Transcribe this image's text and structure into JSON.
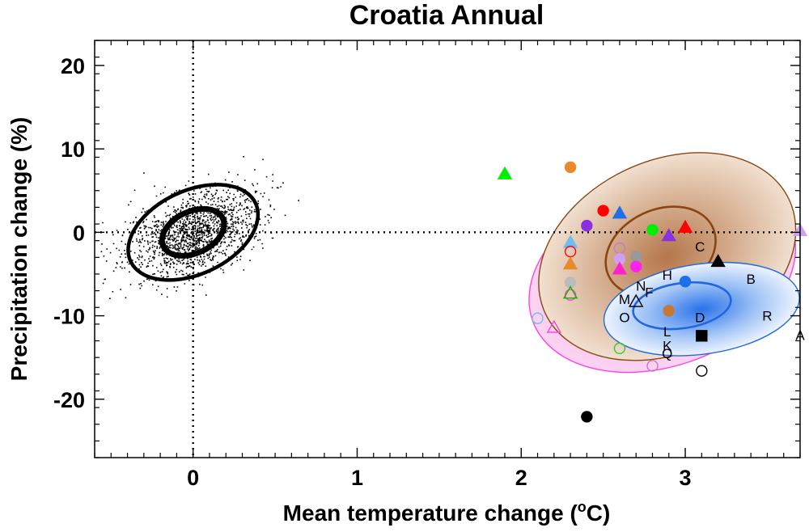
{
  "chart_data": {
    "type": "scatter",
    "title": "Croatia Annual",
    "xlabel_main": "Mean temperature change (",
    "xlabel_sup": "o",
    "xlabel_end": "C)",
    "ylabel": "Precipitation change (%)",
    "xlim": [
      -0.6,
      3.7
    ],
    "ylim": [
      -27,
      23
    ],
    "x_ticks": [
      0,
      1,
      2,
      3
    ],
    "x_tick_labels": [
      "0",
      "1",
      "2",
      "3"
    ],
    "y_ticks": [
      20,
      10,
      0,
      -10,
      -20
    ],
    "y_tick_labels": [
      "20",
      "10",
      "0",
      "-10",
      "-20"
    ],
    "reference_lines": {
      "x": 0,
      "y": 0
    },
    "natural_variability": {
      "center": [
        0.0,
        0.0
      ],
      "ellipses": [
        {
          "rx": 0.2,
          "ry": 2.5,
          "angle_deg": -25,
          "stroke_width": 7
        },
        {
          "rx": 0.42,
          "ry": 5.0,
          "angle_deg": -25,
          "stroke_width": 4.5
        }
      ],
      "scatter_count": 1600
    },
    "ensemble_regions": [
      {
        "name": "magenta",
        "color": "#ff44dd",
        "fill": "#fbd3f2",
        "cx": 2.86,
        "cy": -5.0,
        "rx": 0.84,
        "ry": 11.0,
        "angle_deg": -20
      },
      {
        "name": "brown",
        "color": "#8b4513",
        "fill_outer": "#f1e0d0",
        "fill_inner": "#b5764a",
        "cx": 2.89,
        "cy": -2.9,
        "rx": 0.82,
        "ry": 11.5,
        "angle_deg": -25,
        "inner_contour": {
          "cx": 2.85,
          "cy": -2.3,
          "rx": 0.35,
          "ry": 5.0
        }
      },
      {
        "name": "blue",
        "color": "#2266dd",
        "fill_outer": "#eef4ff",
        "fill_inner": "#2a72ea",
        "cx": 3.1,
        "cy": -9.2,
        "rx": 0.6,
        "ry": 5.4,
        "angle_deg": -8,
        "inner_contour": {
          "cx": 2.98,
          "cy": -8.8,
          "rx": 0.3,
          "ry": 2.7
        }
      }
    ],
    "models": [
      {
        "x": 1.9,
        "y": 7.0,
        "marker": "triangle",
        "filled": true,
        "color": "#00ee00"
      },
      {
        "x": 2.3,
        "y": 7.8,
        "marker": "circle",
        "filled": true,
        "color": "#e88a2a"
      },
      {
        "x": 2.5,
        "y": 2.6,
        "marker": "circle",
        "filled": true,
        "color": "#ff0000"
      },
      {
        "x": 2.6,
        "y": 2.3,
        "marker": "triangle",
        "filled": true,
        "color": "#1f6fe8"
      },
      {
        "x": 2.4,
        "y": 0.8,
        "marker": "circle",
        "filled": true,
        "color": "#8a30e0"
      },
      {
        "x": 2.8,
        "y": 0.3,
        "marker": "circle",
        "filled": true,
        "color": "#00ee00"
      },
      {
        "x": 3.0,
        "y": 0.6,
        "marker": "triangle",
        "filled": true,
        "color": "#ff0000"
      },
      {
        "x": 2.9,
        "y": -0.4,
        "marker": "triangle",
        "filled": true,
        "color": "#8a30e0"
      },
      {
        "x": 3.7,
        "y": 0.2,
        "marker": "triangle",
        "filled": true,
        "color": "#d0a0f0"
      },
      {
        "x": 2.3,
        "y": -1.2,
        "marker": "triangle",
        "filled": true,
        "color": "#6fbcf0"
      },
      {
        "x": 2.3,
        "y": -2.3,
        "marker": "circle",
        "filled": false,
        "color": "#ff0000"
      },
      {
        "x": 2.3,
        "y": -3.8,
        "marker": "triangle",
        "filled": true,
        "color": "#e88a2a"
      },
      {
        "x": 2.3,
        "y": -6.0,
        "marker": "circle",
        "filled": true,
        "color": "#bbbbbb"
      },
      {
        "x": 2.3,
        "y": -7.5,
        "marker": "circle",
        "filled": false,
        "color": "#ff44dd"
      },
      {
        "x": 2.3,
        "y": -7.3,
        "marker": "triangle",
        "filled": false,
        "color": "#00bb00"
      },
      {
        "x": 2.6,
        "y": -1.9,
        "marker": "circle",
        "filled": false,
        "color": "#cc77cc"
      },
      {
        "x": 2.6,
        "y": -3.2,
        "marker": "circle",
        "filled": true,
        "color": "#d0a0f0"
      },
      {
        "x": 2.7,
        "y": -2.9,
        "marker": "circle",
        "filled": true,
        "color": "#999999"
      },
      {
        "x": 2.6,
        "y": -4.4,
        "marker": "triangle",
        "filled": true,
        "color": "#ff22cc"
      },
      {
        "x": 2.7,
        "y": -4.1,
        "marker": "circle",
        "filled": true,
        "color": "#ff22ee"
      },
      {
        "x": 3.2,
        "y": -3.5,
        "marker": "triangle",
        "filled": true,
        "color": "#000000"
      },
      {
        "x": 3.0,
        "y": -5.9,
        "marker": "circle",
        "filled": true,
        "color": "#1f6fe8"
      },
      {
        "x": 2.9,
        "y": -9.4,
        "marker": "circle",
        "filled": true,
        "color": "#c87832"
      },
      {
        "x": 2.7,
        "y": -8.3,
        "marker": "triangle",
        "filled": false,
        "color": "#000000"
      },
      {
        "x": 3.1,
        "y": -12.4,
        "marker": "square",
        "filled": true,
        "color": "#000000"
      },
      {
        "x": 2.2,
        "y": -11.4,
        "marker": "triangle",
        "filled": false,
        "color": "#ff44dd"
      },
      {
        "x": 2.1,
        "y": -10.3,
        "marker": "circle",
        "filled": false,
        "color": "#6fbcf0"
      },
      {
        "x": 2.6,
        "y": -13.9,
        "marker": "circle",
        "filled": false,
        "color": "#33cc33"
      },
      {
        "x": 2.8,
        "y": -16.0,
        "marker": "circle",
        "filled": false,
        "color": "#cc77cc"
      },
      {
        "x": 3.1,
        "y": -16.6,
        "marker": "circle",
        "filled": false,
        "color": "#000000"
      },
      {
        "x": 2.4,
        "y": -22.1,
        "marker": "circle",
        "filled": true,
        "color": "#000000"
      }
    ],
    "letter_models": [
      {
        "label": "C",
        "x": 3.09,
        "y": -1.7
      },
      {
        "label": "H",
        "x": 2.89,
        "y": -5.1
      },
      {
        "label": "B",
        "x": 3.4,
        "y": -5.6
      },
      {
        "label": "N",
        "x": 2.73,
        "y": -6.4
      },
      {
        "label": "F",
        "x": 2.78,
        "y": -7.2
      },
      {
        "label": "M",
        "x": 2.63,
        "y": -8.0
      },
      {
        "label": "O",
        "x": 2.63,
        "y": -10.2
      },
      {
        "label": "R",
        "x": 3.5,
        "y": -10.0
      },
      {
        "label": "D",
        "x": 3.09,
        "y": -10.2
      },
      {
        "label": "A",
        "x": 3.7,
        "y": -12.3
      },
      {
        "label": "L",
        "x": 2.89,
        "y": -11.9
      },
      {
        "label": "K",
        "x": 2.89,
        "y": -13.6
      },
      {
        "label": "Q",
        "x": 2.89,
        "y": -14.5
      }
    ]
  }
}
